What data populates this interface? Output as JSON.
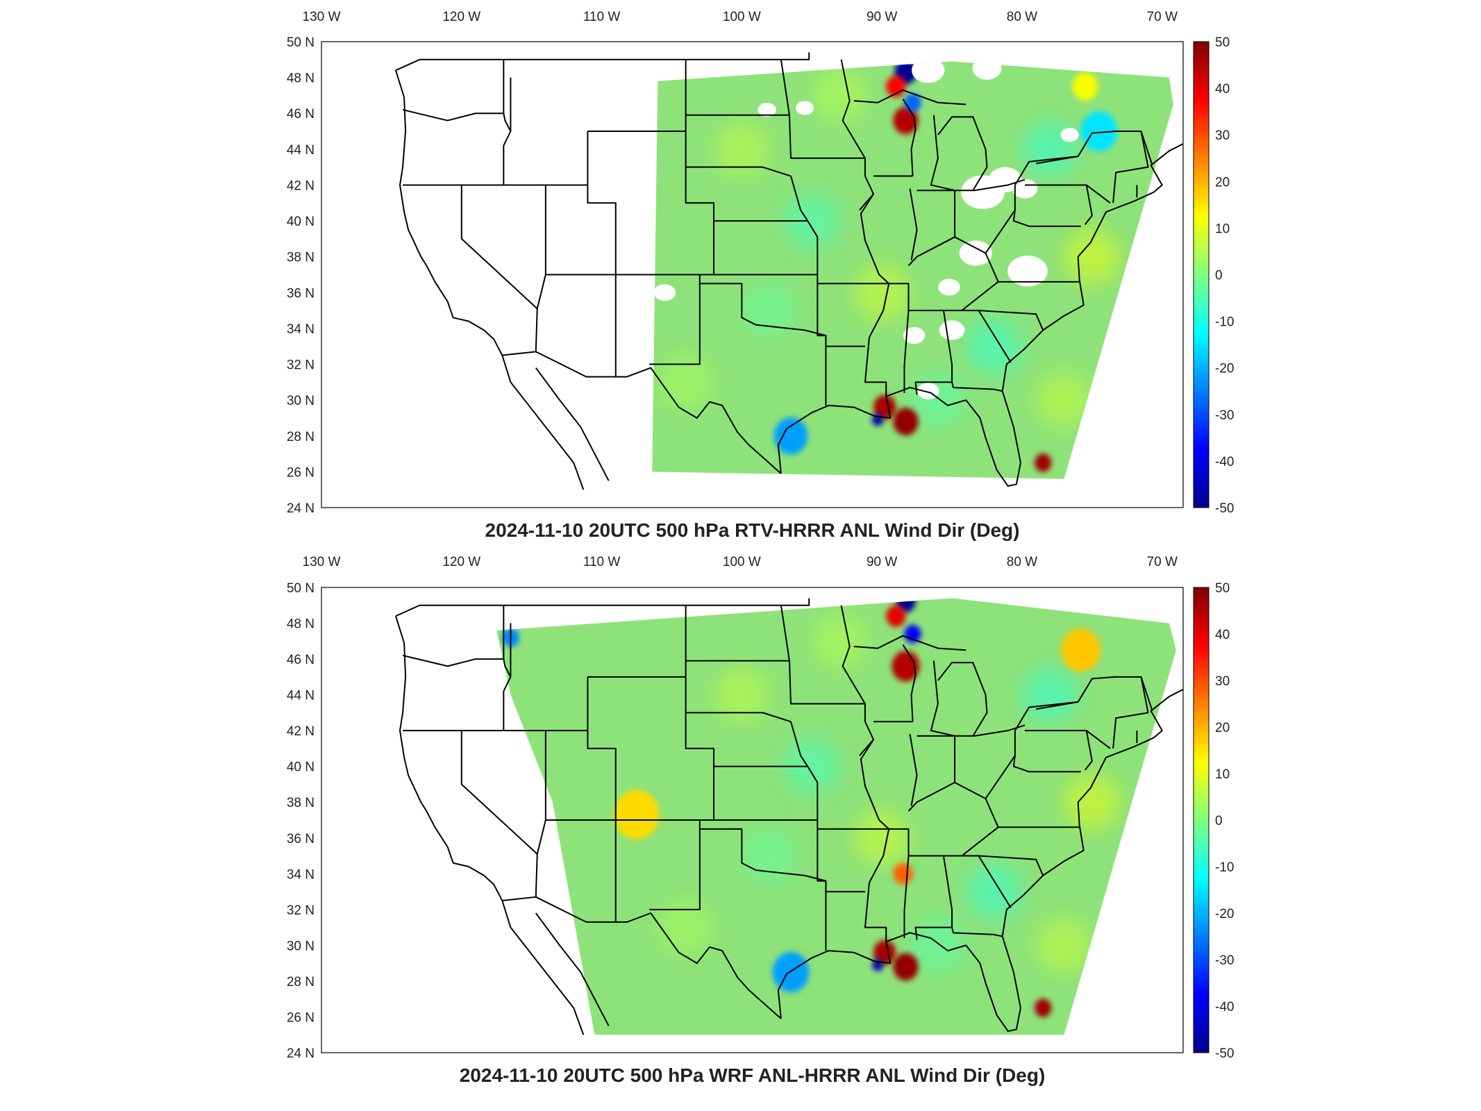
{
  "panels": [
    {
      "title": "2024-11-10 20UTC 500 hPa RTV-HRRR ANL Wind Dir (Deg)",
      "coverage": "partial",
      "anomalies": [
        {
          "lon": -88.3,
          "lat": 48.3,
          "value": -48,
          "r": 0.8
        },
        {
          "lon": -89.0,
          "lat": 47.5,
          "value": 38,
          "r": 0.7
        },
        {
          "lon": -88.3,
          "lat": 45.6,
          "value": 45,
          "r": 0.9
        },
        {
          "lon": -87.8,
          "lat": 46.6,
          "value": -28,
          "r": 0.6
        },
        {
          "lon": -89.8,
          "lat": 29.6,
          "value": 46,
          "r": 0.8
        },
        {
          "lon": -88.3,
          "lat": 28.8,
          "value": 48,
          "r": 0.9
        },
        {
          "lon": -90.3,
          "lat": 28.9,
          "value": -45,
          "r": 0.4
        },
        {
          "lon": -78.5,
          "lat": 26.5,
          "value": 47,
          "r": 0.6
        },
        {
          "lon": -96.5,
          "lat": 28.0,
          "value": -22,
          "r": 1.2
        },
        {
          "lon": -74.5,
          "lat": 45.0,
          "value": -15,
          "r": 1.3
        },
        {
          "lon": -75.5,
          "lat": 47.5,
          "value": 12,
          "r": 0.9
        }
      ]
    },
    {
      "title": "2024-11-10 20UTC 500 hPa WRF ANL-HRRR ANL Wind Dir (Deg)",
      "coverage": "full",
      "anomalies": [
        {
          "lon": -88.3,
          "lat": 49.2,
          "value": -48,
          "r": 0.7
        },
        {
          "lon": -89.0,
          "lat": 48.4,
          "value": 40,
          "r": 0.7
        },
        {
          "lon": -88.3,
          "lat": 45.6,
          "value": 45,
          "r": 1.0
        },
        {
          "lon": -87.8,
          "lat": 47.4,
          "value": -38,
          "r": 0.6
        },
        {
          "lon": -88.5,
          "lat": 34.0,
          "value": 28,
          "r": 0.7
        },
        {
          "lon": -89.8,
          "lat": 29.6,
          "value": 46,
          "r": 0.8
        },
        {
          "lon": -88.3,
          "lat": 28.8,
          "value": 48,
          "r": 0.9
        },
        {
          "lon": -90.3,
          "lat": 28.9,
          "value": -45,
          "r": 0.4
        },
        {
          "lon": -78.5,
          "lat": 26.5,
          "value": 47,
          "r": 0.6
        },
        {
          "lon": -96.5,
          "lat": 28.5,
          "value": -22,
          "r": 1.3
        },
        {
          "lon": -116.5,
          "lat": 47.2,
          "value": -25,
          "r": 0.6
        },
        {
          "lon": -75.8,
          "lat": 46.5,
          "value": 18,
          "r": 1.4
        },
        {
          "lon": -107.5,
          "lat": 37.3,
          "value": 16,
          "r": 1.6
        }
      ]
    }
  ],
  "lon_ticks": [
    {
      "value": -130,
      "label": "130 W"
    },
    {
      "value": -120,
      "label": "120 W"
    },
    {
      "value": -110,
      "label": "110 W"
    },
    {
      "value": -100,
      "label": "100 W"
    },
    {
      "value": -90,
      "label": "90 W"
    },
    {
      "value": -80,
      "label": "80 W"
    },
    {
      "value": -70,
      "label": "70 W"
    }
  ],
  "lat_ticks": [
    {
      "value": 50,
      "label": "50 N"
    },
    {
      "value": 48,
      "label": "48 N"
    },
    {
      "value": 46,
      "label": "46 N"
    },
    {
      "value": 44,
      "label": "44 N"
    },
    {
      "value": 42,
      "label": "42 N"
    },
    {
      "value": 40,
      "label": "40 N"
    },
    {
      "value": 38,
      "label": "38 N"
    },
    {
      "value": 36,
      "label": "36 N"
    },
    {
      "value": 34,
      "label": "34 N"
    },
    {
      "value": 32,
      "label": "32 N"
    },
    {
      "value": 30,
      "label": "30 N"
    },
    {
      "value": 28,
      "label": "28 N"
    },
    {
      "value": 26,
      "label": "26 N"
    },
    {
      "value": 24,
      "label": "24 N"
    }
  ],
  "colorbar": {
    "range": [
      -50,
      50
    ],
    "ticks": [
      "50",
      "40",
      "30",
      "20",
      "10",
      "0",
      "-10",
      "-20",
      "-30",
      "-40",
      "-50"
    ],
    "colormap": "jet"
  },
  "colors": {
    "background_field": "#8ee27a",
    "no_data": "#ffffff",
    "borders": "#000000"
  }
}
